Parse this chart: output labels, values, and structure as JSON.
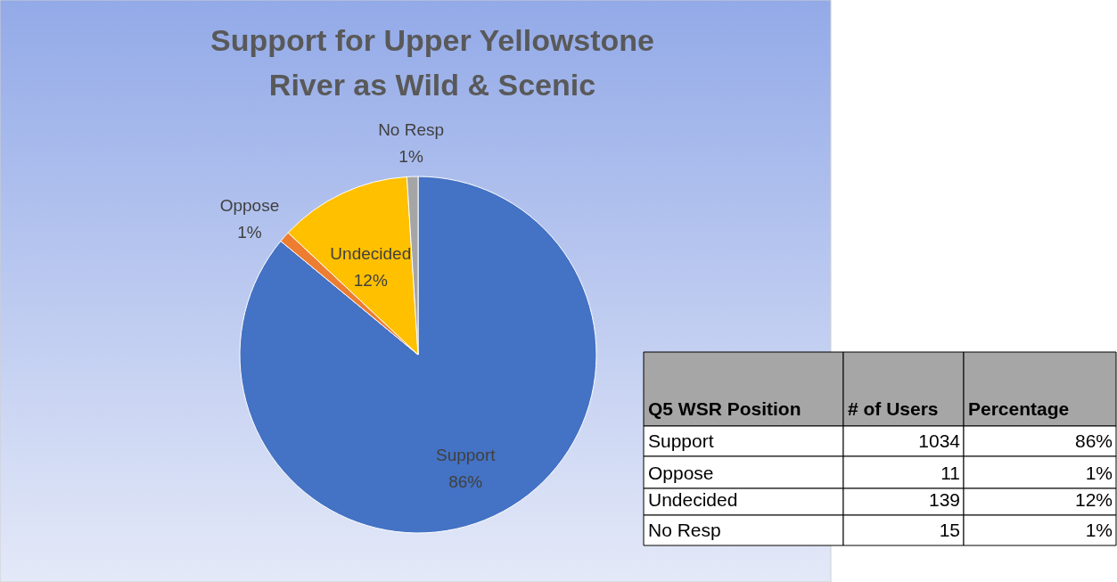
{
  "chart_data": {
    "type": "pie",
    "title": "Support for Upper Yellowstone River as Wild & Scenic",
    "categories": [
      "Support",
      "Oppose",
      "Undecided",
      "No Resp"
    ],
    "values": [
      86,
      1,
      12,
      1
    ],
    "value_labels": [
      "86%",
      "1%",
      "12%",
      "1%"
    ],
    "colors": [
      "#4472c4",
      "#ed7d31",
      "#ffc000",
      "#a5a5a5"
    ],
    "annotations": [
      "Q5 WSR Position",
      "# of Users",
      "Percentage",
      "1034",
      "11",
      "139",
      "15"
    ]
  }
}
